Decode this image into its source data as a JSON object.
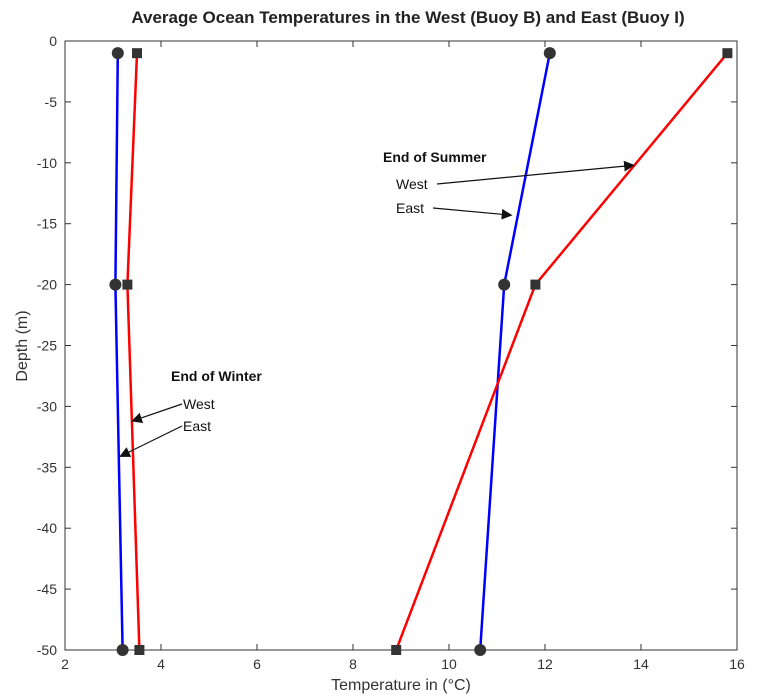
{
  "chart_data": {
    "type": "line",
    "title": "Average Ocean Temperatures in the West (Buoy B) and East (Buoy I)",
    "xlabel": "Temperature in (°C)",
    "ylabel": "Depth (m)",
    "xlim": [
      2,
      16
    ],
    "ylim": [
      -50,
      0
    ],
    "xticks": [
      2,
      4,
      6,
      8,
      10,
      12,
      14,
      16
    ],
    "yticks": [
      0,
      -5,
      -10,
      -15,
      -20,
      -25,
      -30,
      -35,
      -40,
      -45,
      -50
    ],
    "grid": false,
    "colors": {
      "west": "#0000ff",
      "east": "#ff0000",
      "marker": "#333333"
    },
    "series": [
      {
        "group": "winter",
        "color": "#0000ff",
        "marker": "circle",
        "points": [
          {
            "x": 3.1,
            "y": -1
          },
          {
            "x": 3.05,
            "y": -20
          },
          {
            "x": 3.2,
            "y": -50
          }
        ]
      },
      {
        "group": "winter",
        "color": "#ff0000",
        "marker": "square",
        "points": [
          {
            "x": 3.5,
            "y": -1
          },
          {
            "x": 3.3,
            "y": -20
          },
          {
            "x": 3.55,
            "y": -50
          }
        ]
      },
      {
        "group": "summer",
        "color": "#0000ff",
        "marker": "circle",
        "points": [
          {
            "x": 12.1,
            "y": -1
          },
          {
            "x": 11.15,
            "y": -20
          },
          {
            "x": 10.65,
            "y": -50
          }
        ]
      },
      {
        "group": "summer",
        "color": "#ff0000",
        "marker": "square",
        "points": [
          {
            "x": 15.8,
            "y": -1
          },
          {
            "x": 11.8,
            "y": -20
          },
          {
            "x": 8.9,
            "y": -50
          }
        ]
      }
    ],
    "annotations": {
      "summer": {
        "heading": "End of Summer",
        "west": {
          "text": "West",
          "arrow_to": {
            "x": 13.85,
            "y": -10.2
          }
        },
        "east": {
          "text": "East",
          "arrow_to": {
            "x": 11.3,
            "y": -14.3
          }
        }
      },
      "winter": {
        "heading": "End of Winter",
        "west": {
          "text": "West",
          "arrow_to": {
            "x": 3.4,
            "y": -31.2
          }
        },
        "east": {
          "text": "East",
          "arrow_to": {
            "x": 3.15,
            "y": -34.1
          }
        }
      }
    }
  }
}
